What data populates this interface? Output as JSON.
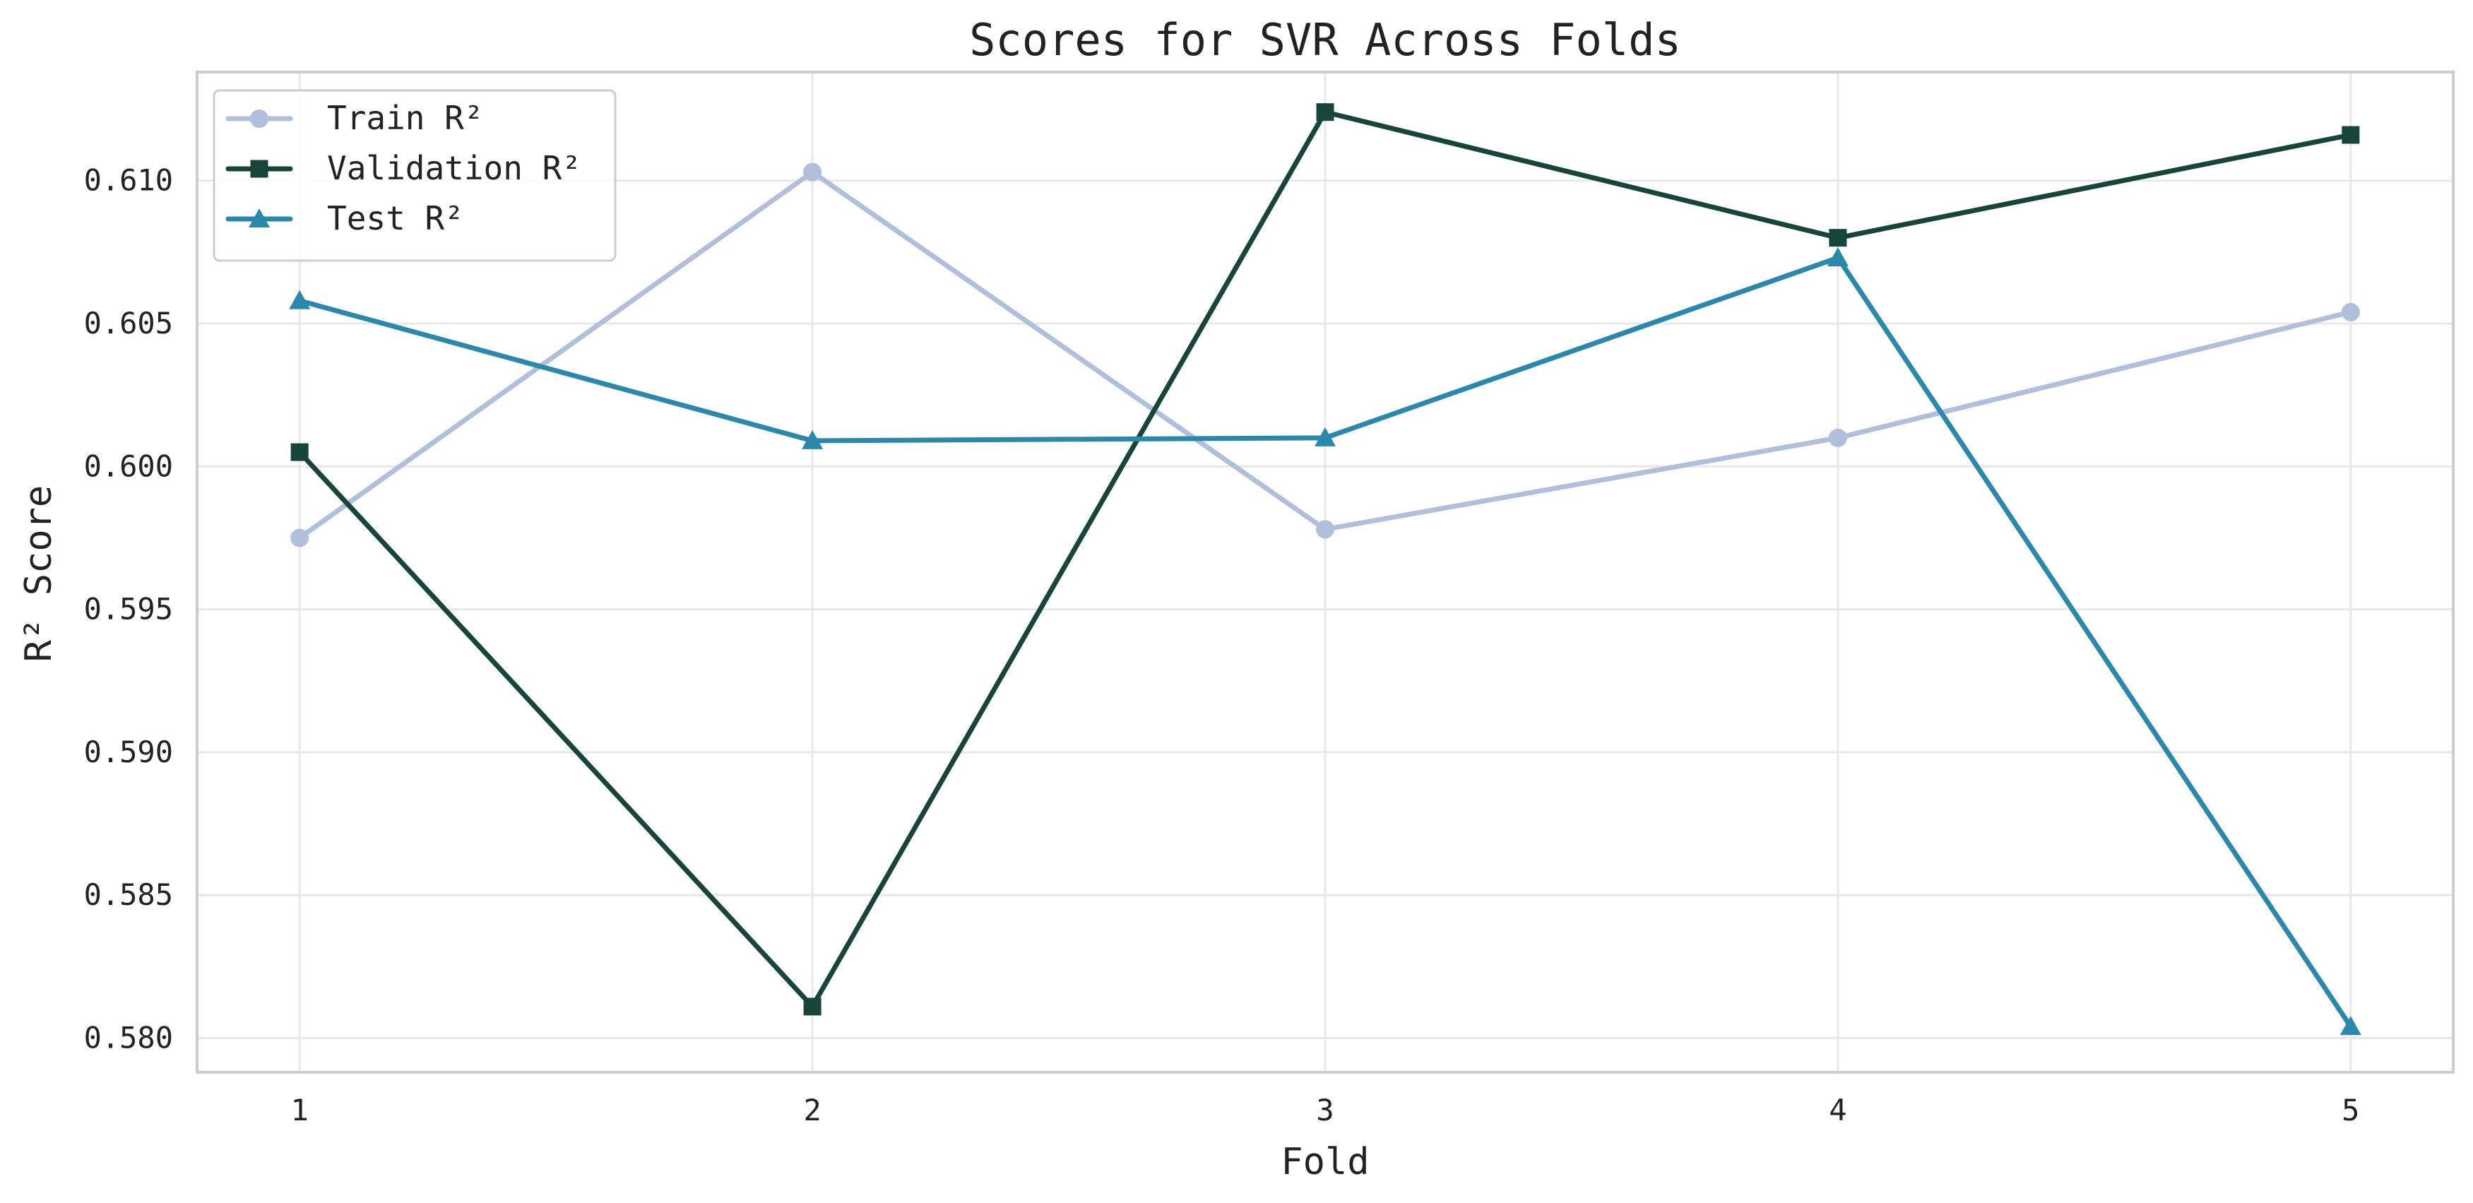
{
  "chart_data": {
    "type": "line",
    "title": "Scores for SVR Across Folds",
    "xlabel": "Fold",
    "ylabel": "R² Score",
    "x": [
      1,
      2,
      3,
      4,
      5
    ],
    "x_tick_labels": [
      "1",
      "2",
      "3",
      "4",
      "5"
    ],
    "y_ticks": [
      0.58,
      0.585,
      0.59,
      0.595,
      0.6,
      0.605,
      0.61
    ],
    "y_tick_labels": [
      "0.580",
      "0.585",
      "0.590",
      "0.595",
      "0.600",
      "0.605",
      "0.610"
    ],
    "xlim": [
      0.8,
      5.2
    ],
    "ylim": [
      0.5788,
      0.6138
    ],
    "grid": true,
    "legend_position": "top-left",
    "series": [
      {
        "name": "Train R²",
        "color": "#b0bfdb",
        "marker": "circle",
        "values": [
          0.5975,
          0.6103,
          0.5978,
          0.601,
          0.6054
        ]
      },
      {
        "name": "Validation R²",
        "color": "#17453a",
        "marker": "square",
        "values": [
          0.6005,
          0.5811,
          0.6124,
          0.608,
          0.6116
        ]
      },
      {
        "name": "Test R²",
        "color": "#2a88ac",
        "marker": "triangle",
        "values": [
          0.6058,
          0.6009,
          0.601,
          0.6073,
          0.5804
        ]
      }
    ]
  },
  "colors": {
    "grid": "#e8e8e8",
    "frame": "#cccccc",
    "text": "#222222"
  }
}
